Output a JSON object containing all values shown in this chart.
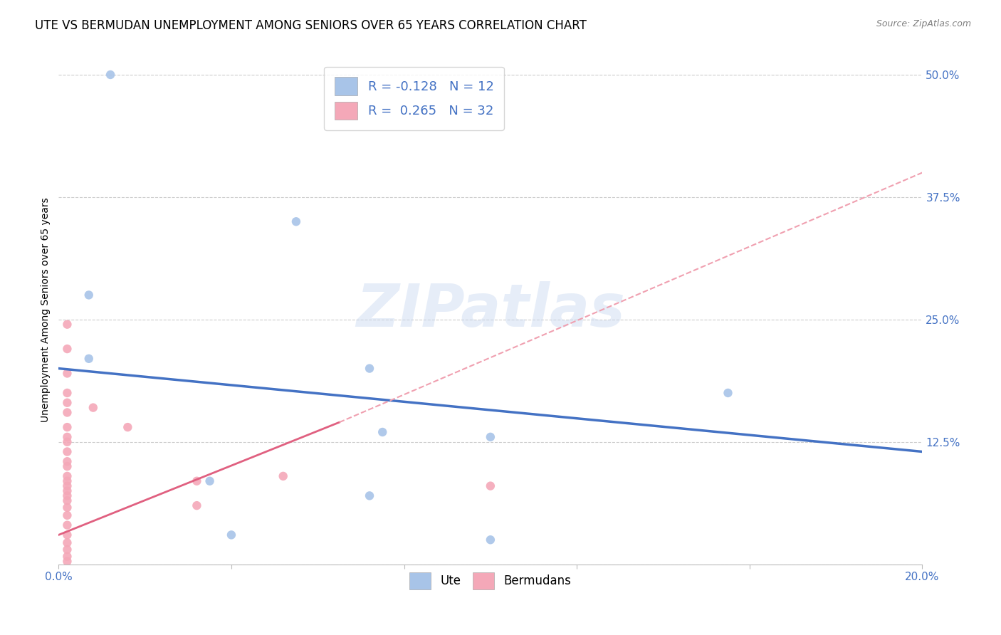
{
  "title": "UTE VS BERMUDAN UNEMPLOYMENT AMONG SENIORS OVER 65 YEARS CORRELATION CHART",
  "source": "Source: ZipAtlas.com",
  "ylabel_label": "Unemployment Among Seniors over 65 years",
  "xlim": [
    0.0,
    0.2
  ],
  "ylim": [
    0.0,
    0.52
  ],
  "xticks": [
    0.0,
    0.04,
    0.08,
    0.12,
    0.16,
    0.2
  ],
  "xtick_labels": [
    "0.0%",
    "",
    "",
    "",
    "",
    "20.0%"
  ],
  "ytick_labels_right": [
    "",
    "12.5%",
    "25.0%",
    "37.5%",
    "50.0%"
  ],
  "yticks_right": [
    0.0,
    0.125,
    0.25,
    0.375,
    0.5
  ],
  "watermark": "ZIPatlas",
  "legend_ute_R": "-0.128",
  "legend_ute_N": "12",
  "legend_berm_R": "0.265",
  "legend_berm_N": "32",
  "ute_color": "#a8c4e8",
  "berm_color": "#f4a8b8",
  "ute_line_color": "#4472c4",
  "berm_line_solid_color": "#e06080",
  "berm_line_dash_color": "#f0a0b0",
  "ute_scatter_x": [
    0.012,
    0.007,
    0.007,
    0.055,
    0.072,
    0.075,
    0.072,
    0.035,
    0.04,
    0.1,
    0.155,
    0.1
  ],
  "ute_scatter_y": [
    0.5,
    0.275,
    0.21,
    0.35,
    0.2,
    0.135,
    0.07,
    0.085,
    0.03,
    0.025,
    0.175,
    0.13
  ],
  "berm_scatter_x": [
    0.002,
    0.002,
    0.002,
    0.002,
    0.002,
    0.002,
    0.002,
    0.002,
    0.002,
    0.002,
    0.002,
    0.002,
    0.002,
    0.002,
    0.002,
    0.002,
    0.002,
    0.002,
    0.002,
    0.002,
    0.002,
    0.002,
    0.002,
    0.002,
    0.002,
    0.002,
    0.008,
    0.016,
    0.032,
    0.032,
    0.052,
    0.1
  ],
  "berm_scatter_y": [
    0.245,
    0.22,
    0.195,
    0.175,
    0.165,
    0.155,
    0.14,
    0.13,
    0.125,
    0.115,
    0.105,
    0.1,
    0.09,
    0.085,
    0.08,
    0.075,
    0.07,
    0.065,
    0.058,
    0.05,
    0.04,
    0.03,
    0.022,
    0.015,
    0.008,
    0.003,
    0.16,
    0.14,
    0.085,
    0.06,
    0.09,
    0.08
  ],
  "ute_trendline_x": [
    0.0,
    0.2
  ],
  "ute_trendline_y": [
    0.2,
    0.115
  ],
  "berm_solid_trendline_x": [
    0.0,
    0.065
  ],
  "berm_solid_trendline_y": [
    0.03,
    0.145
  ],
  "berm_dash_trendline_x": [
    0.065,
    0.2
  ],
  "berm_dash_trendline_y": [
    0.145,
    0.4
  ],
  "background_color": "#ffffff",
  "grid_color": "#cccccc",
  "title_fontsize": 12,
  "axis_label_fontsize": 10,
  "tick_fontsize": 11,
  "scatter_size": 80
}
